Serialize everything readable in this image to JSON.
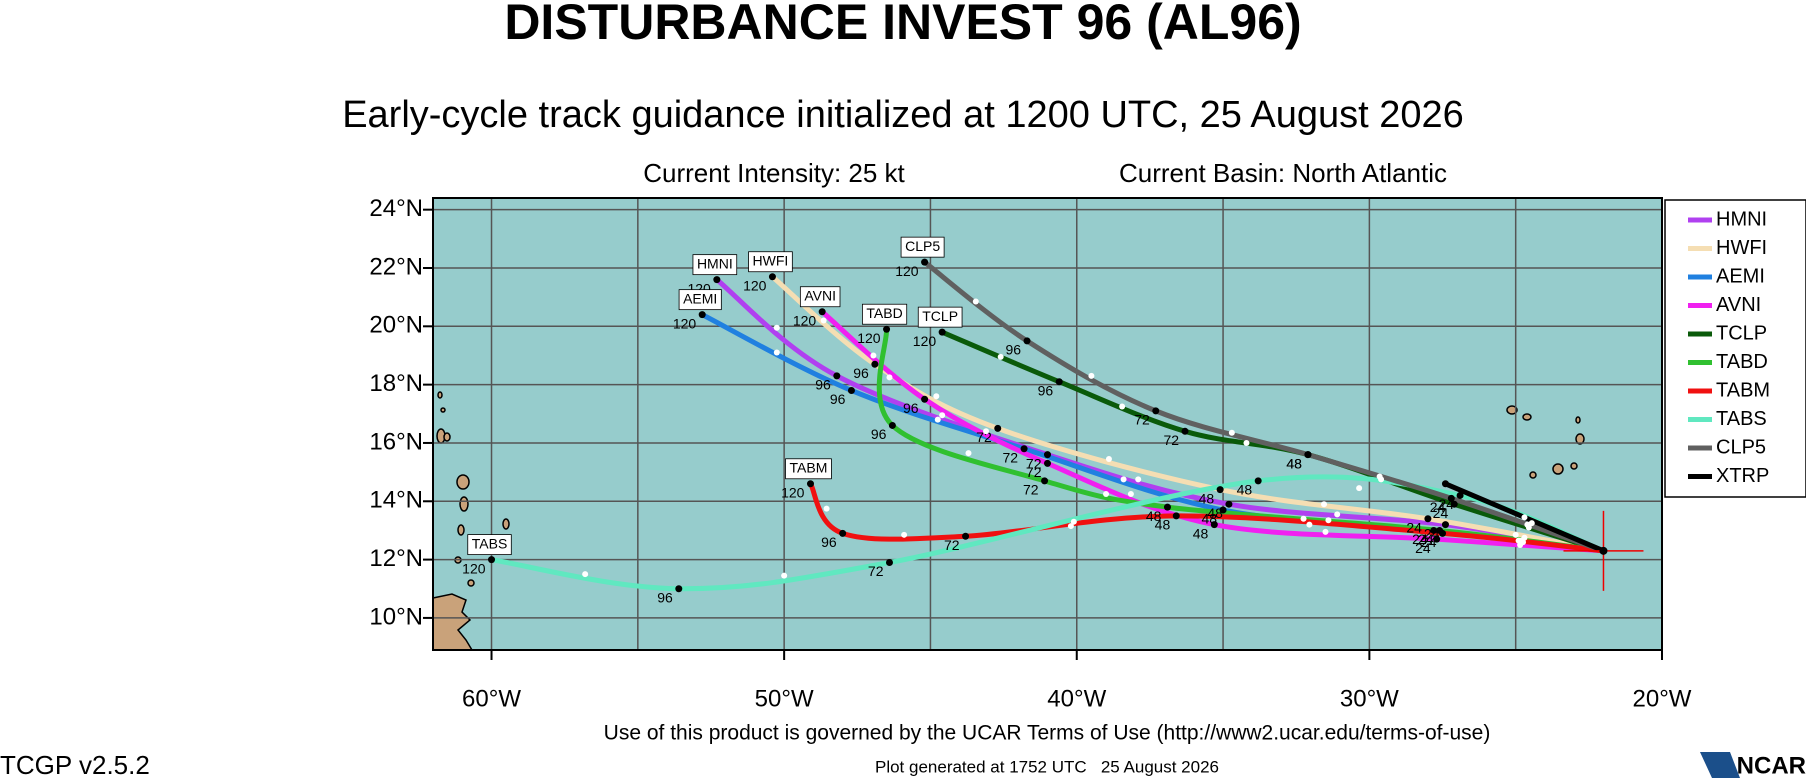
{
  "header": {
    "title": "DISTURBANCE INVEST 96 (AL96)",
    "subtitle": "Early-cycle track guidance initialized at 1200 UTC, 25 August 2026",
    "intensity": "Current Intensity: 25 kt",
    "basin": "Current Basin: North Atlantic"
  },
  "map": {
    "xlim": [
      -62,
      -20
    ],
    "ylim": [
      8.9,
      24.4
    ],
    "xticks": [
      {
        "value": -60,
        "label": "60°W"
      },
      {
        "value": -50,
        "label": "50°W"
      },
      {
        "value": -40,
        "label": "40°W"
      },
      {
        "value": -30,
        "label": "30°W"
      },
      {
        "value": -20,
        "label": "20°W"
      }
    ],
    "yticks": [
      {
        "value": 10,
        "label": "10°N"
      },
      {
        "value": 12,
        "label": "12°N"
      },
      {
        "value": 14,
        "label": "14°N"
      },
      {
        "value": 16,
        "label": "16°N"
      },
      {
        "value": 18,
        "label": "18°N"
      },
      {
        "value": 20,
        "label": "20°N"
      },
      {
        "value": 22,
        "label": "22°N"
      },
      {
        "value": 24,
        "label": "24°N"
      }
    ],
    "grid_lon": [
      -60,
      -55,
      -50,
      -45,
      -40,
      -35,
      -30,
      -25
    ],
    "grid_lat": [
      10,
      12,
      14,
      16,
      18,
      20,
      22,
      24
    ],
    "initial_position": [
      -22.0,
      12.3
    ]
  },
  "hour_labels": [
    "24",
    "48",
    "72",
    "96",
    "120"
  ],
  "tracks": [
    {
      "name": "HMNI",
      "color": "#b040f0",
      "points": [
        [
          -22.0,
          12.3
        ],
        [
          -27.4,
          13.2
        ],
        [
          -34.8,
          13.9
        ],
        [
          -41.0,
          15.6
        ],
        [
          -48.2,
          18.3
        ],
        [
          -52.3,
          21.6
        ]
      ]
    },
    {
      "name": "HWFI",
      "color": "#f5deb3",
      "points": [
        [
          -22.0,
          12.3
        ],
        [
          -28.0,
          13.4
        ],
        [
          -35.1,
          14.4
        ],
        [
          -42.7,
          16.5
        ],
        [
          -46.9,
          18.7
        ],
        [
          -50.4,
          21.7
        ]
      ]
    },
    {
      "name": "AEMI",
      "color": "#2080e0",
      "points": [
        [
          -22.0,
          12.3
        ],
        [
          -27.8,
          13.0
        ],
        [
          -35.0,
          13.7
        ],
        [
          -41.8,
          15.8
        ],
        [
          -47.7,
          17.8
        ],
        [
          -52.8,
          20.4
        ]
      ]
    },
    {
      "name": "AVNI",
      "color": "#f020f0",
      "points": [
        [
          -22.0,
          12.3
        ],
        [
          -27.7,
          12.7
        ],
        [
          -35.3,
          13.2
        ],
        [
          -41.0,
          15.3
        ],
        [
          -45.2,
          17.5
        ],
        [
          -48.7,
          20.5
        ]
      ]
    },
    {
      "name": "TCLP",
      "color": "#0a5a0a",
      "points": [
        [
          -22.0,
          12.3
        ],
        [
          -27.1,
          13.9
        ],
        [
          -32.1,
          15.6
        ],
        [
          -36.3,
          16.4
        ],
        [
          -40.6,
          18.1
        ],
        [
          -44.6,
          19.8
        ]
      ]
    },
    {
      "name": "TABD",
      "color": "#30c030",
      "points": [
        [
          -22.0,
          12.3
        ],
        [
          -27.6,
          13.0
        ],
        [
          -36.9,
          13.8
        ],
        [
          -41.1,
          14.7
        ],
        [
          -46.3,
          16.6
        ],
        [
          -46.5,
          19.9
        ]
      ]
    },
    {
      "name": "TABM",
      "color": "#f01010",
      "points": [
        [
          -22.0,
          12.3
        ],
        [
          -27.5,
          12.9
        ],
        [
          -36.6,
          13.5
        ],
        [
          -43.8,
          12.8
        ],
        [
          -48.0,
          12.9
        ],
        [
          -49.1,
          14.6
        ]
      ]
    },
    {
      "name": "TABS",
      "color": "#60e8c0",
      "points": [
        [
          -22.0,
          12.3
        ],
        [
          -26.9,
          14.2
        ],
        [
          -33.8,
          14.7
        ],
        [
          -46.4,
          11.9
        ],
        [
          -53.6,
          11.0
        ],
        [
          -60.0,
          12.0
        ]
      ]
    },
    {
      "name": "CLP5",
      "color": "#606060",
      "points": [
        [
          -22.0,
          12.3
        ],
        [
          -27.2,
          14.1
        ],
        [
          -32.1,
          15.6
        ],
        [
          -37.3,
          17.1
        ],
        [
          -41.7,
          19.5
        ],
        [
          -45.2,
          22.2
        ]
      ]
    },
    {
      "name": "XTRP",
      "color": "#000000",
      "points": [
        [
          -22.0,
          12.3
        ],
        [
          -27.4,
          14.6
        ]
      ]
    }
  ],
  "footer": {
    "terms": "Use of this product is governed by the UCAR Terms of Use (http://www2.ucar.edu/terms-of-use)",
    "generated": "Plot generated at 1752 UTC   25 August 2026",
    "version": "TCGP v2.5.2",
    "logo": "NCAR"
  }
}
